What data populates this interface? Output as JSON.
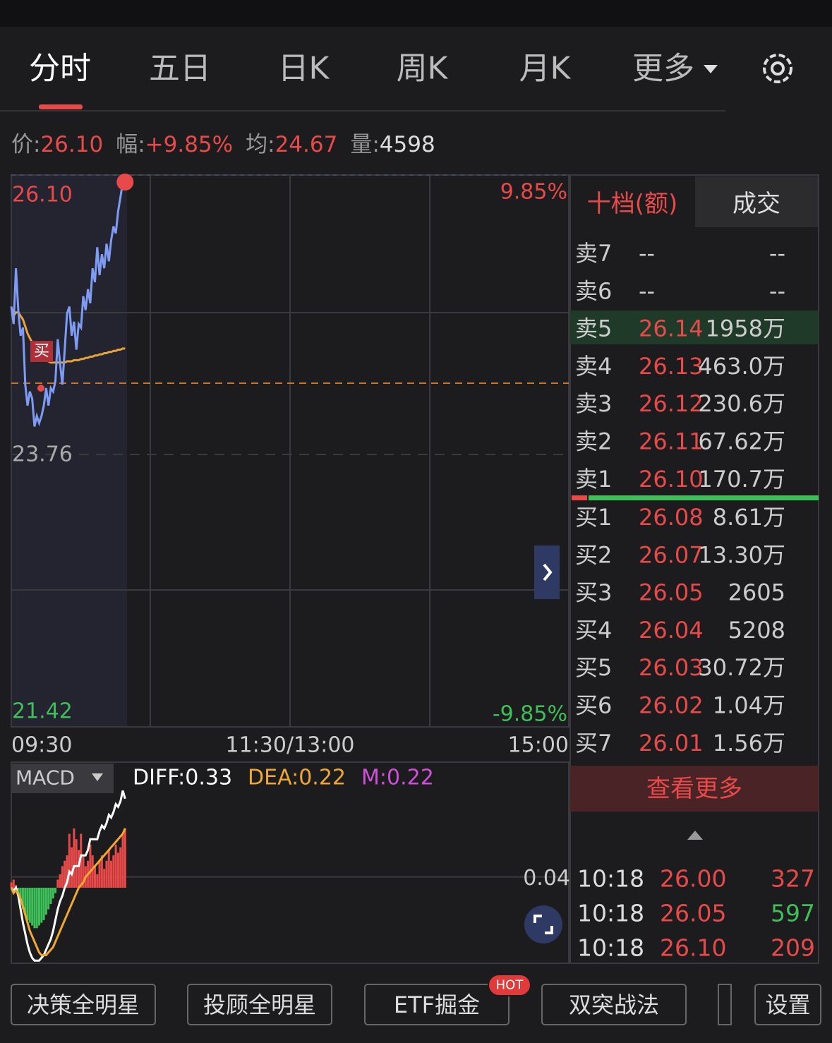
{
  "tabs": [
    "分时",
    "五日",
    "日K",
    "周K",
    "月K",
    "更多"
  ],
  "stats": [
    {
      "label": "价:",
      "value": "26.10"
    },
    {
      "label": "幅:",
      "value": "+9.85%"
    },
    {
      "label": "均:",
      "value": "24.67"
    },
    {
      "label": "量:",
      "value": "4598"
    }
  ],
  "chart_data": [
    {
      "type": "line",
      "ylim": [
        21.42,
        26.1
      ],
      "yticks": [
        {
          "value": 26.1,
          "label": "26.10"
        },
        {
          "value": 23.76,
          "label": "23.76"
        },
        {
          "value": 21.42,
          "label": "21.42"
        }
      ],
      "right_labels": [
        "9.85%",
        "-9.85%"
      ],
      "x_labels": [
        "09:30",
        "11:30/13:00",
        "15:00"
      ],
      "marker_label": "买",
      "series": [
        {
          "color": "#7f9cf5",
          "values": [
            25.03,
            24.88,
            25.36,
            25.0,
            24.78,
            24.85,
            24.36,
            24.18,
            24.3,
            24.24,
            24.0,
            24.09,
            24.03,
            24.09,
            24.18,
            24.33,
            24.18,
            24.33,
            24.3,
            24.39,
            24.75,
            24.54,
            24.36,
            24.66,
            24.97,
            25.03,
            24.78,
            24.9,
            24.66,
            24.88,
            24.85,
            25.12,
            25.0,
            25.18,
            25.06,
            25.36,
            25.24,
            25.54,
            25.3,
            25.48,
            25.36,
            25.57,
            25.42,
            25.6,
            25.72,
            25.66,
            25.85,
            25.97,
            26.1,
            26.1
          ]
        },
        {
          "color": "#e8a33a",
          "values": [
            25.03,
            24.95,
            24.98,
            24.98,
            24.95,
            24.92,
            24.86,
            24.8,
            24.76,
            24.72,
            24.68,
            24.65,
            24.62,
            24.6,
            24.58,
            24.57,
            24.56,
            24.55,
            24.55,
            24.55,
            24.55,
            24.55,
            24.55,
            24.55,
            24.56,
            24.56,
            24.56,
            24.57,
            24.57,
            24.57,
            24.58,
            24.58,
            24.59,
            24.59,
            24.6,
            24.6,
            24.61,
            24.61,
            24.62,
            24.62,
            24.63,
            24.63,
            24.64,
            24.64,
            24.65,
            24.65,
            24.66,
            24.66,
            24.67,
            24.67
          ]
        }
      ]
    },
    {
      "type": "macd",
      "indicator": "MACD",
      "ylim": [
        -0.28,
        0.34
      ],
      "yticks": [
        0.04
      ],
      "series": [
        {
          "label": "DIFF:0.33",
          "color": "#ffffff",
          "values": [
            0.0,
            -0.01,
            0.0,
            -0.03,
            -0.08,
            -0.13,
            -0.17,
            -0.21,
            -0.24,
            -0.26,
            -0.27,
            -0.27,
            -0.27,
            -0.26,
            -0.25,
            -0.23,
            -0.21,
            -0.19,
            -0.16,
            -0.12,
            -0.08,
            -0.05,
            -0.03,
            0.0,
            0.02,
            0.06,
            0.05,
            0.08,
            0.08,
            0.08,
            0.12,
            0.12,
            0.12,
            0.14,
            0.18,
            0.18,
            0.18,
            0.18,
            0.21,
            0.23,
            0.22,
            0.24,
            0.27,
            0.26,
            0.28,
            0.31,
            0.3,
            0.32,
            0.36,
            0.33
          ]
        },
        {
          "label": "DEA:0.22",
          "color": "#f0a830",
          "values": [
            0.0,
            -0.02,
            -0.01,
            -0.02,
            -0.04,
            -0.07,
            -0.1,
            -0.13,
            -0.16,
            -0.18,
            -0.2,
            -0.22,
            -0.24,
            -0.25,
            -0.25,
            -0.25,
            -0.24,
            -0.23,
            -0.22,
            -0.2,
            -0.18,
            -0.16,
            -0.14,
            -0.12,
            -0.1,
            -0.08,
            -0.06,
            -0.04,
            -0.02,
            0.0,
            0.01,
            0.02,
            0.04,
            0.05,
            0.06,
            0.07,
            0.08,
            0.09,
            0.1,
            0.11,
            0.12,
            0.13,
            0.14,
            0.15,
            0.16,
            0.17,
            0.18,
            0.19,
            0.2,
            0.22
          ]
        },
        {
          "label": "M:0.22",
          "color": "#d04fd8",
          "values": [
            0.02,
            0.03,
            0.01,
            -0.02,
            -0.05,
            -0.08,
            -0.1,
            -0.12,
            -0.13,
            -0.14,
            -0.15,
            -0.15,
            -0.14,
            -0.13,
            -0.12,
            -0.1,
            -0.08,
            -0.06,
            -0.04,
            -0.02,
            0.03,
            0.05,
            0.08,
            0.1,
            0.12,
            0.2,
            0.15,
            0.22,
            0.18,
            0.14,
            0.2,
            0.12,
            0.08,
            0.1,
            0.16,
            0.12,
            0.08,
            0.05,
            0.1,
            0.12,
            0.07,
            0.1,
            0.14,
            0.1,
            0.12,
            0.16,
            0.13,
            0.15,
            0.2,
            0.22
          ]
        }
      ]
    }
  ],
  "order_book": {
    "tabs": [
      "十档(额)",
      "成交"
    ],
    "asks": [
      [
        "卖7",
        "--",
        "--"
      ],
      [
        "卖6",
        "--",
        "--"
      ],
      [
        "卖5",
        "26.14",
        "1958万"
      ],
      [
        "卖4",
        "26.13",
        "463.0万"
      ],
      [
        "卖3",
        "26.12",
        "230.6万"
      ],
      [
        "卖2",
        "26.11",
        "67.62万"
      ],
      [
        "卖1",
        "26.10",
        "170.7万"
      ]
    ],
    "bids": [
      [
        "买1",
        "26.08",
        "8.61万"
      ],
      [
        "买2",
        "26.07",
        "13.30万"
      ],
      [
        "买3",
        "26.05",
        "2605"
      ],
      [
        "买4",
        "26.04",
        "5208"
      ],
      [
        "买5",
        "26.03",
        "30.72万"
      ],
      [
        "买6",
        "26.02",
        "1.04万"
      ],
      [
        "买7",
        "26.01",
        "1.56万"
      ]
    ],
    "more": "查看更多"
  },
  "trades": [
    {
      "time": "10:18",
      "price": "26.00",
      "volume": "327",
      "color": "#e84a4a"
    },
    {
      "time": "10:18",
      "price": "26.05",
      "volume": "597",
      "color": "#3fbf5a"
    },
    {
      "time": "10:18",
      "price": "26.10",
      "volume": "209",
      "color": "#e84a4a"
    }
  ],
  "buttons": [
    "决策全明星",
    "投顾全明星",
    "ETF掘金",
    "双突战法",
    "设置"
  ],
  "badge": "HOT"
}
